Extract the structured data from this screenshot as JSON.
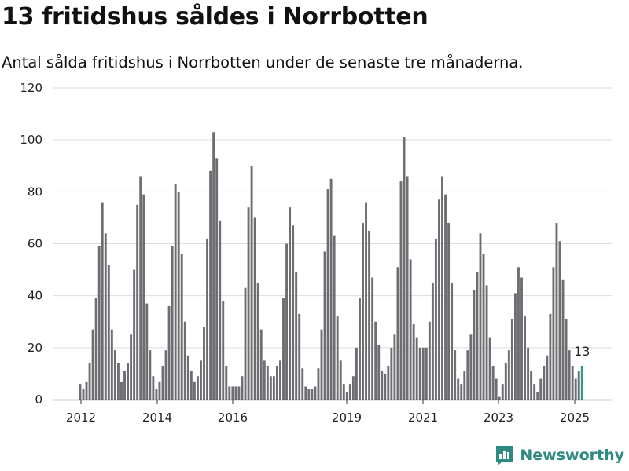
{
  "title": "13 fritidshus såldes i Norrbotten",
  "subtitle": "Antal sålda fritidshus i Norrbotten under de senaste tre månaderna.",
  "brand": "Newsworthy",
  "colors": {
    "bar": "#6e6d72",
    "highlight": "#2f9a8a",
    "grid": "#dddddd",
    "brand": "#2f8a80"
  },
  "chart_data": {
    "type": "bar",
    "title": "",
    "xlabel": "",
    "ylabel": "",
    "ylim": [
      0,
      120
    ],
    "yticks": [
      0,
      20,
      40,
      60,
      80,
      100,
      120
    ],
    "xticks": [
      "2012",
      "2014",
      "2016",
      "2019",
      "2021",
      "2023",
      "2025"
    ],
    "grid": true,
    "annotation": {
      "text": "13",
      "index": -1
    },
    "series": [
      {
        "values": [
          6,
          4,
          7,
          14,
          27,
          39,
          59,
          76,
          64,
          52,
          27,
          19,
          14,
          7,
          11,
          14,
          25,
          50,
          75,
          86,
          79,
          37,
          19,
          9,
          4,
          7,
          13,
          19,
          36,
          59,
          83,
          80,
          56,
          30,
          17,
          11,
          7,
          9,
          15,
          28,
          62,
          88,
          103,
          93,
          69,
          38,
          13,
          5,
          5,
          5,
          5,
          9,
          43,
          74,
          90,
          70,
          45,
          27,
          15,
          13,
          9,
          9,
          13,
          15,
          39,
          60,
          74,
          67,
          49,
          33,
          12,
          5,
          4,
          4,
          5,
          12,
          27,
          57,
          81,
          85,
          63,
          32,
          15,
          6,
          3,
          6,
          9,
          20,
          39,
          68,
          76,
          65,
          47,
          30,
          21,
          11,
          10,
          13,
          20,
          25,
          51,
          84,
          101,
          86,
          54,
          29,
          24,
          20,
          20,
          20,
          30,
          45,
          62,
          77,
          86,
          79,
          68,
          45,
          19,
          8,
          6,
          11,
          19,
          25,
          42,
          49,
          64,
          56,
          44,
          24,
          13,
          8,
          1,
          6,
          14,
          19,
          31,
          41,
          51,
          47,
          32,
          20,
          11,
          6,
          3,
          8,
          13,
          17,
          33,
          51,
          68,
          61,
          46,
          31,
          19,
          13,
          8,
          11,
          13
        ]
      }
    ]
  }
}
